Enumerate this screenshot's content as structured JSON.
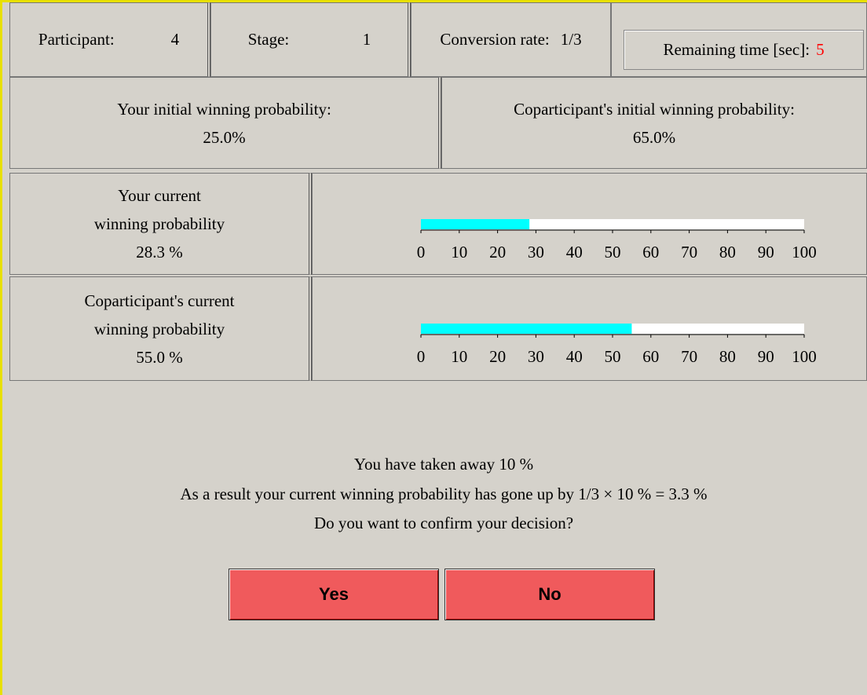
{
  "header": {
    "participant": {
      "label": "Participant:",
      "value": "4"
    },
    "stage": {
      "label": "Stage:",
      "value": "1"
    },
    "conversion_rate": {
      "label": "Conversion rate:",
      "value": "1/3"
    },
    "remaining_time": {
      "label": "Remaining time [sec]:",
      "value": "5"
    }
  },
  "initial": {
    "yours": {
      "label": "Your initial winning probability:",
      "value": "25.0%"
    },
    "coparticipant": {
      "label": "Coparticipant's initial winning probability:",
      "value": "65.0%"
    }
  },
  "current": {
    "xlim": [
      0,
      100
    ],
    "xticks": [
      0,
      10,
      20,
      30,
      40,
      50,
      60,
      70,
      80,
      90,
      100
    ],
    "rows": [
      {
        "label_lines": [
          "Your current",
          "winning probability"
        ],
        "value": 28.3,
        "value_label": "28.3 %"
      },
      {
        "label_lines": [
          "Coparticipant's current",
          "winning probability"
        ],
        "value": 55.0,
        "value_label": "55.0 %"
      }
    ]
  },
  "message": [
    "You have taken away 10 %",
    "As a result your current winning probability has gone up by 1/3 × 10 % = 3.3 %",
    "Do you want to confirm your decision?"
  ],
  "buttons": [
    "Yes",
    "No"
  ]
}
